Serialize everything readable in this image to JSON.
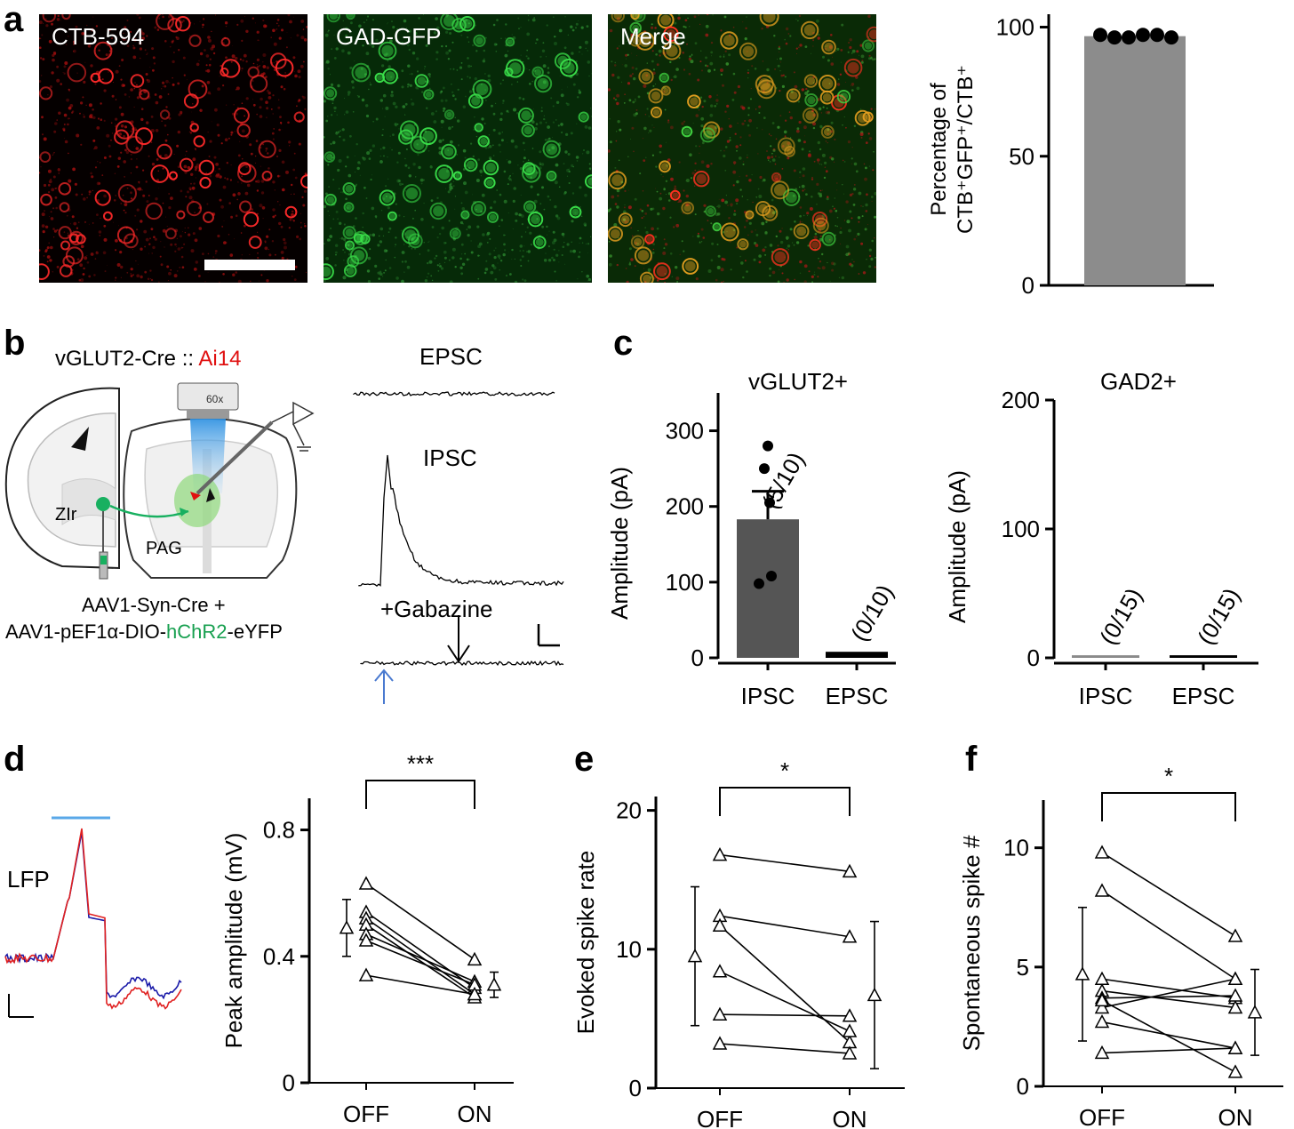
{
  "panels": {
    "a": "a",
    "b": "b",
    "c": "c",
    "d": "d",
    "e": "e",
    "f": "f"
  },
  "panel_a": {
    "images": [
      {
        "label": "CTB-594",
        "color": "#ff2020"
      },
      {
        "label": "GAD-GFP",
        "color": "#20e040"
      },
      {
        "label": "Merge",
        "color": "#c0a020"
      }
    ],
    "chart": {
      "ylabel_line1": "Percentage of",
      "ylabel_line2": "CTB⁺GFP⁺/CTB⁺"
    }
  },
  "panel_b": {
    "title_prefix": "vGLUT2-Cre :: ",
    "title_highlight": "Ai14",
    "objective": "60x",
    "region_zir": "ZIr",
    "region_pag": "PAG",
    "virus_line1": "AAV1-Syn-Cre +",
    "virus_line2_pre": "AAV1-pEF1α-DIO-",
    "virus_line2_mid": "hChR2",
    "virus_line2_post": "-eYFP",
    "trace_epsc": "EPSC",
    "trace_ipsc": "IPSC",
    "trace_gabazine": "+Gabazine"
  },
  "chart_data": [
    {
      "id": "a",
      "type": "bar",
      "title": "",
      "xlabel": "",
      "ylabel": "Percentage of CTB⁺GFP⁺/CTB⁺",
      "ylim": [
        0,
        100
      ],
      "yticks": [
        0,
        50,
        100
      ],
      "categories": [
        ""
      ],
      "values": [
        96.5
      ],
      "points": [
        97,
        96,
        96,
        97,
        97,
        96
      ]
    },
    {
      "id": "c-vglut2",
      "type": "bar",
      "title": "vGLUT2+",
      "ylabel": "Amplitude (pA)",
      "ylim": [
        0,
        350
      ],
      "yticks": [
        0,
        100,
        200,
        300
      ],
      "categories": [
        "IPSC",
        "EPSC"
      ],
      "values": [
        183,
        8
      ],
      "sem": [
        37,
        0
      ],
      "counts": [
        "(5/10)",
        "(0/10)"
      ],
      "points": [
        280,
        250,
        205,
        108,
        98
      ],
      "colors": [
        "#555555",
        "#000000"
      ]
    },
    {
      "id": "c-gad2",
      "type": "bar",
      "title": "GAD2+",
      "ylabel": "Amplitude (pA)",
      "ylim": [
        0,
        200
      ],
      "yticks": [
        0,
        100,
        200
      ],
      "categories": [
        "IPSC",
        "EPSC"
      ],
      "values": [
        0,
        2
      ],
      "counts": [
        "(0/15)",
        "(0/15)"
      ],
      "colors": [
        "#8a8a8a",
        "#000000"
      ]
    },
    {
      "id": "d",
      "type": "scatter",
      "title": "***",
      "ylabel": "Peak amplitude (mV)",
      "ylim": [
        0,
        0.9
      ],
      "yticks": [
        0,
        0.4,
        0.8
      ],
      "ytick_labels": [
        "0",
        "0.4",
        "0.8"
      ],
      "categories": [
        "OFF",
        "ON"
      ],
      "pairs": [
        [
          0.63,
          0.39
        ],
        [
          0.54,
          0.3
        ],
        [
          0.52,
          0.28
        ],
        [
          0.5,
          0.27
        ],
        [
          0.47,
          0.32
        ],
        [
          0.45,
          0.31
        ],
        [
          0.34,
          0.28
        ]
      ],
      "mean": [
        0.49,
        0.31
      ],
      "err": [
        0.09,
        0.04
      ]
    },
    {
      "id": "e",
      "type": "scatter",
      "title": "*",
      "ylabel": "Evoked spike rate",
      "ylim": [
        0,
        21
      ],
      "yticks": [
        0,
        10,
        20
      ],
      "categories": [
        "OFF",
        "ON"
      ],
      "pairs": [
        [
          16.8,
          15.6
        ],
        [
          12.4,
          10.9
        ],
        [
          11.7,
          3.3
        ],
        [
          8.4,
          4.1
        ],
        [
          5.3,
          5.2
        ],
        [
          3.2,
          2.5
        ]
      ],
      "mean": [
        9.5,
        6.7
      ],
      "err": [
        5.0,
        5.3
      ]
    },
    {
      "id": "f",
      "type": "scatter",
      "title": "*",
      "ylabel": "Spontaneous spike #",
      "ylim": [
        0,
        12
      ],
      "yticks": [
        0,
        5,
        10
      ],
      "categories": [
        "OFF",
        "ON"
      ],
      "pairs": [
        [
          9.8,
          6.3
        ],
        [
          8.2,
          4.5
        ],
        [
          4.5,
          3.7
        ],
        [
          4.0,
          3.3
        ],
        [
          3.7,
          3.8
        ],
        [
          3.3,
          4.5
        ],
        [
          2.7,
          1.6
        ],
        [
          1.4,
          1.6
        ],
        [
          3.6,
          0.6
        ]
      ],
      "mean": [
        4.7,
        3.1
      ],
      "err": [
        2.8,
        1.8
      ]
    }
  ],
  "panel_d_trace": {
    "label": "LFP",
    "colors": {
      "off": "#e02020",
      "on": "#1a1aa8",
      "light": "#5aa8e8"
    }
  }
}
